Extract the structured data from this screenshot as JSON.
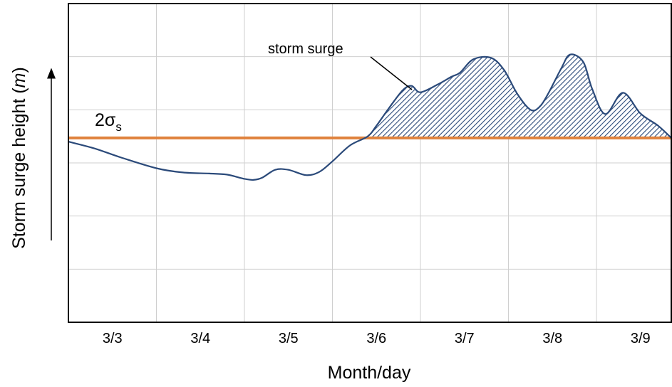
{
  "chart_data": {
    "type": "line",
    "xlabel": "Month/day",
    "ylabel_prefix": "Storm surge height (",
    "ylabel_unit": "m",
    "ylabel_suffix": ")",
    "categories": [
      "3/3",
      "3/4",
      "3/5",
      "3/6",
      "3/7",
      "3/8",
      "3/9"
    ],
    "xlim": [
      3.0,
      9.85
    ],
    "ylim": [
      0,
      6
    ],
    "grid": true,
    "threshold": {
      "label_base": "2",
      "label_sigma": "σ",
      "label_sub": "s",
      "value": 3.47,
      "color": "#e0823d"
    },
    "annotation": "storm surge",
    "series": [
      {
        "color": "#2b4a7a",
        "x": [
          3.0,
          3.3,
          3.6,
          4.0,
          4.3,
          4.6,
          4.8,
          5.0,
          5.1,
          5.2,
          5.35,
          5.5,
          5.7,
          5.85,
          6.0,
          6.2,
          6.4,
          6.5,
          6.65,
          6.8,
          6.9,
          7.0,
          7.2,
          7.35,
          7.45,
          7.6,
          7.8,
          7.95,
          8.1,
          8.25,
          8.35,
          8.45,
          8.6,
          8.7,
          8.85,
          8.95,
          9.1,
          9.3,
          9.5,
          9.7,
          9.85
        ],
        "y": [
          3.4,
          3.27,
          3.1,
          2.9,
          2.82,
          2.8,
          2.78,
          2.7,
          2.68,
          2.72,
          2.87,
          2.87,
          2.77,
          2.83,
          3.03,
          3.33,
          3.5,
          3.7,
          4.05,
          4.37,
          4.45,
          4.33,
          4.48,
          4.62,
          4.7,
          4.95,
          4.98,
          4.75,
          4.3,
          4.0,
          4.05,
          4.3,
          4.78,
          5.04,
          4.9,
          4.4,
          3.92,
          4.32,
          3.93,
          3.7,
          3.47
        ]
      }
    ]
  }
}
